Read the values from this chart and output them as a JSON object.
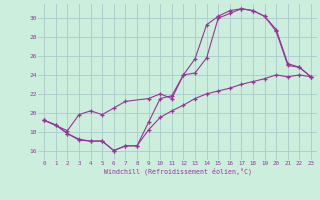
{
  "xlabel": "Windchill (Refroidissement éolien,°C)",
  "background_color": "#cceedd",
  "grid_color": "#aacccc",
  "line_color": "#993399",
  "xlim": [
    -0.5,
    23.5
  ],
  "ylim": [
    15.0,
    31.5
  ],
  "yticks": [
    16,
    18,
    20,
    22,
    24,
    26,
    28,
    30
  ],
  "xticks": [
    0,
    1,
    2,
    3,
    4,
    5,
    6,
    7,
    8,
    9,
    10,
    11,
    12,
    13,
    14,
    15,
    16,
    17,
    18,
    19,
    20,
    21,
    22,
    23
  ],
  "curve1_x": [
    0,
    1,
    2,
    3,
    4,
    5,
    6,
    7,
    8,
    9,
    10,
    11,
    12,
    13,
    14,
    15,
    16,
    17,
    18,
    19,
    20,
    21,
    22,
    23
  ],
  "curve1_y": [
    19.2,
    18.7,
    17.8,
    17.1,
    17.0,
    17.0,
    16.0,
    16.5,
    16.5,
    19.0,
    21.5,
    21.8,
    24.0,
    25.7,
    29.3,
    30.2,
    30.8,
    31.0,
    30.8,
    30.2,
    28.8,
    25.2,
    24.8,
    23.8
  ],
  "curve2_x": [
    0,
    2,
    3,
    4,
    5,
    6,
    7,
    9,
    10,
    11,
    12,
    13,
    14,
    15,
    16,
    17,
    18,
    19,
    20,
    21,
    22,
    23
  ],
  "curve2_y": [
    19.2,
    18.1,
    19.8,
    20.2,
    19.8,
    20.5,
    21.2,
    21.5,
    22.0,
    21.5,
    24.0,
    24.2,
    25.8,
    30.0,
    30.5,
    31.0,
    30.8,
    30.2,
    28.6,
    25.0,
    24.8,
    23.8
  ],
  "curve3_x": [
    0,
    1,
    2,
    3,
    4,
    5,
    6,
    7,
    8,
    9,
    10,
    11,
    12,
    13,
    14,
    15,
    16,
    17,
    18,
    19,
    20,
    21,
    22,
    23
  ],
  "curve3_y": [
    19.2,
    18.7,
    17.8,
    17.2,
    17.0,
    17.0,
    16.0,
    16.5,
    16.5,
    18.2,
    19.5,
    20.2,
    20.8,
    21.5,
    22.0,
    22.3,
    22.6,
    23.0,
    23.3,
    23.6,
    24.0,
    23.8,
    24.0,
    23.8
  ]
}
